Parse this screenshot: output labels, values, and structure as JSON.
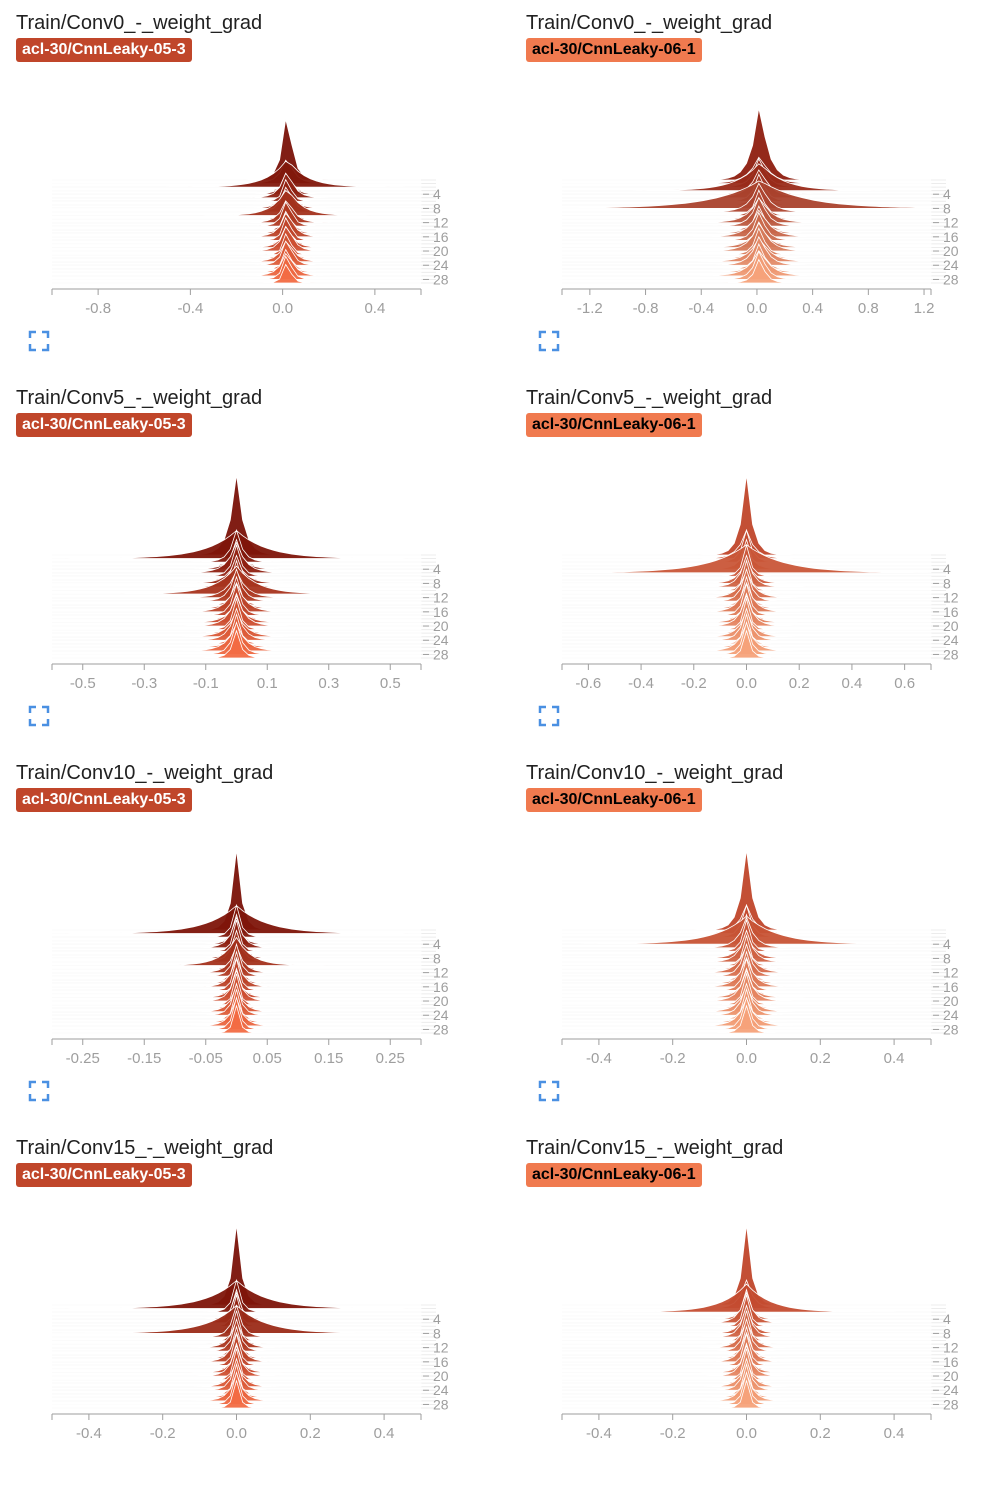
{
  "panels": [
    {
      "title": "Train/Conv0_-_weight_grad",
      "run": "acl-30/CnnLeaky-05-3"
    },
    {
      "title": "Train/Conv0_-_weight_grad",
      "run": "acl-30/CnnLeaky-06-1"
    },
    {
      "title": "Train/Conv5_-_weight_grad",
      "run": "acl-30/CnnLeaky-05-3"
    },
    {
      "title": "Train/Conv5_-_weight_grad",
      "run": "acl-30/CnnLeaky-06-1"
    },
    {
      "title": "Train/Conv10_-_weight_grad",
      "run": "acl-30/CnnLeaky-05-3"
    },
    {
      "title": "Train/Conv10_-_weight_grad",
      "run": "acl-30/CnnLeaky-06-1"
    },
    {
      "title": "Train/Conv15_-_weight_grad",
      "run": "acl-30/CnnLeaky-05-3"
    },
    {
      "title": "Train/Conv15_-_weight_grad",
      "run": "acl-30/CnnLeaky-06-1"
    }
  ],
  "icons": {
    "expand": "fullscreen-icon"
  },
  "colors": {
    "run_05_3": "#c0462a",
    "run_06_1": "#f07a4f",
    "badge_text_05_3": "#ffffff",
    "badge_text_06_1": "#000000",
    "axis": "#9e9e9e",
    "icon": "#4a90e2"
  },
  "chart_data": [
    {
      "type": "histogram-ridgeline",
      "xlim": [
        -1.0,
        0.6
      ],
      "x_ticks": [
        "-0.8",
        "-0.4",
        "0.0",
        "0.4"
      ],
      "x_tick_values": [
        -0.8,
        -0.4,
        0.0,
        0.4
      ],
      "y_ticks": [
        "4",
        "8",
        "12",
        "16",
        "20",
        "24",
        "28"
      ],
      "steps": 30,
      "peak_center": 0.02,
      "peak_width": 0.04,
      "spike_steps": [
        2,
        10
      ],
      "spike_width": 0.15,
      "color_dark": "#7a1208",
      "color_light": "#f26b43"
    },
    {
      "type": "histogram-ridgeline",
      "xlim": [
        -1.4,
        1.25
      ],
      "x_ticks": [
        "-1.2",
        "-0.8",
        "-0.4",
        "0.0",
        "0.4",
        "0.8",
        "1.2"
      ],
      "x_tick_values": [
        -1.2,
        -0.8,
        -0.4,
        0.0,
        0.4,
        0.8,
        1.2
      ],
      "y_ticks": [
        "4",
        "8",
        "12",
        "16",
        "20",
        "24",
        "28"
      ],
      "steps": 30,
      "peak_center": 0.02,
      "peak_width": 0.1,
      "spike_steps": [
        3,
        8
      ],
      "spike_width": 0.4,
      "color_dark": "#8e1d0f",
      "color_light": "#f5a27a"
    },
    {
      "type": "histogram-ridgeline",
      "xlim": [
        -0.6,
        0.6
      ],
      "x_ticks": [
        "-0.5",
        "-0.3",
        "-0.1",
        "0.1",
        "0.3",
        "0.5"
      ],
      "x_tick_values": [
        -0.5,
        -0.3,
        -0.1,
        0.1,
        0.3,
        0.5
      ],
      "y_ticks": [
        "4",
        "8",
        "12",
        "16",
        "20",
        "24",
        "28"
      ],
      "steps": 30,
      "peak_center": 0.0,
      "peak_width": 0.04,
      "spike_steps": [
        1,
        11
      ],
      "spike_width": 0.12,
      "color_dark": "#7a1208",
      "color_light": "#f26b43"
    },
    {
      "type": "histogram-ridgeline",
      "xlim": [
        -0.7,
        0.7
      ],
      "x_ticks": [
        "-0.6",
        "-0.4",
        "-0.2",
        "0.0",
        "0.2",
        "0.4",
        "0.6"
      ],
      "x_tick_values": [
        -0.6,
        -0.4,
        -0.2,
        0.0,
        0.2,
        0.4,
        0.6
      ],
      "y_ticks": [
        "4",
        "8",
        "12",
        "16",
        "20",
        "24",
        "28"
      ],
      "steps": 30,
      "peak_center": 0.0,
      "peak_width": 0.04,
      "spike_steps": [
        5
      ],
      "spike_width": 0.18,
      "color_dark": "#c0462a",
      "color_light": "#f5a27a"
    },
    {
      "type": "histogram-ridgeline",
      "xlim": [
        -0.3,
        0.3
      ],
      "x_ticks": [
        "-0.25",
        "-0.15",
        "-0.05",
        "0.05",
        "0.15",
        "0.25"
      ],
      "x_tick_values": [
        -0.25,
        -0.15,
        -0.05,
        0.05,
        0.15,
        0.25
      ],
      "y_ticks": [
        "4",
        "8",
        "12",
        "16",
        "20",
        "24",
        "28"
      ],
      "steps": 30,
      "peak_center": 0.0,
      "peak_width": 0.015,
      "spike_steps": [
        1,
        10
      ],
      "spike_width": 0.06,
      "color_dark": "#7a1208",
      "color_light": "#f26b43"
    },
    {
      "type": "histogram-ridgeline",
      "xlim": [
        -0.5,
        0.5
      ],
      "x_ticks": [
        "-0.4",
        "-0.2",
        "0.0",
        "0.2",
        "0.4"
      ],
      "x_tick_values": [
        -0.4,
        -0.2,
        0.0,
        0.2,
        0.4
      ],
      "y_ticks": [
        "4",
        "8",
        "12",
        "16",
        "20",
        "24",
        "28"
      ],
      "steps": 30,
      "peak_center": 0.0,
      "peak_width": 0.03,
      "spike_steps": [
        4
      ],
      "spike_width": 0.12,
      "color_dark": "#c0462a",
      "color_light": "#f5a27a"
    },
    {
      "type": "histogram-ridgeline",
      "xlim": [
        -0.5,
        0.5
      ],
      "x_ticks": [
        "-0.4",
        "-0.2",
        "0.0",
        "0.2",
        "0.4"
      ],
      "x_tick_values": [
        -0.4,
        -0.2,
        0.0,
        0.2,
        0.4
      ],
      "y_ticks": [
        "4",
        "8",
        "12",
        "16",
        "20",
        "24",
        "28"
      ],
      "steps": 30,
      "peak_center": 0.0,
      "peak_width": 0.025,
      "spike_steps": [
        1,
        8
      ],
      "spike_width": 0.1,
      "color_dark": "#7a1208",
      "color_light": "#f26b43"
    },
    {
      "type": "histogram-ridgeline",
      "xlim": [
        -0.5,
        0.5
      ],
      "x_ticks": [
        "-0.4",
        "-0.2",
        "0.0",
        "0.2",
        "0.4"
      ],
      "x_tick_values": [
        -0.4,
        -0.2,
        0.0,
        0.2,
        0.4
      ],
      "y_ticks": [
        "4",
        "8",
        "12",
        "16",
        "20",
        "24",
        "28"
      ],
      "steps": 30,
      "peak_center": 0.0,
      "peak_width": 0.025,
      "spike_steps": [
        2
      ],
      "spike_width": 0.12,
      "color_dark": "#c0462a",
      "color_light": "#f5a27a"
    }
  ]
}
